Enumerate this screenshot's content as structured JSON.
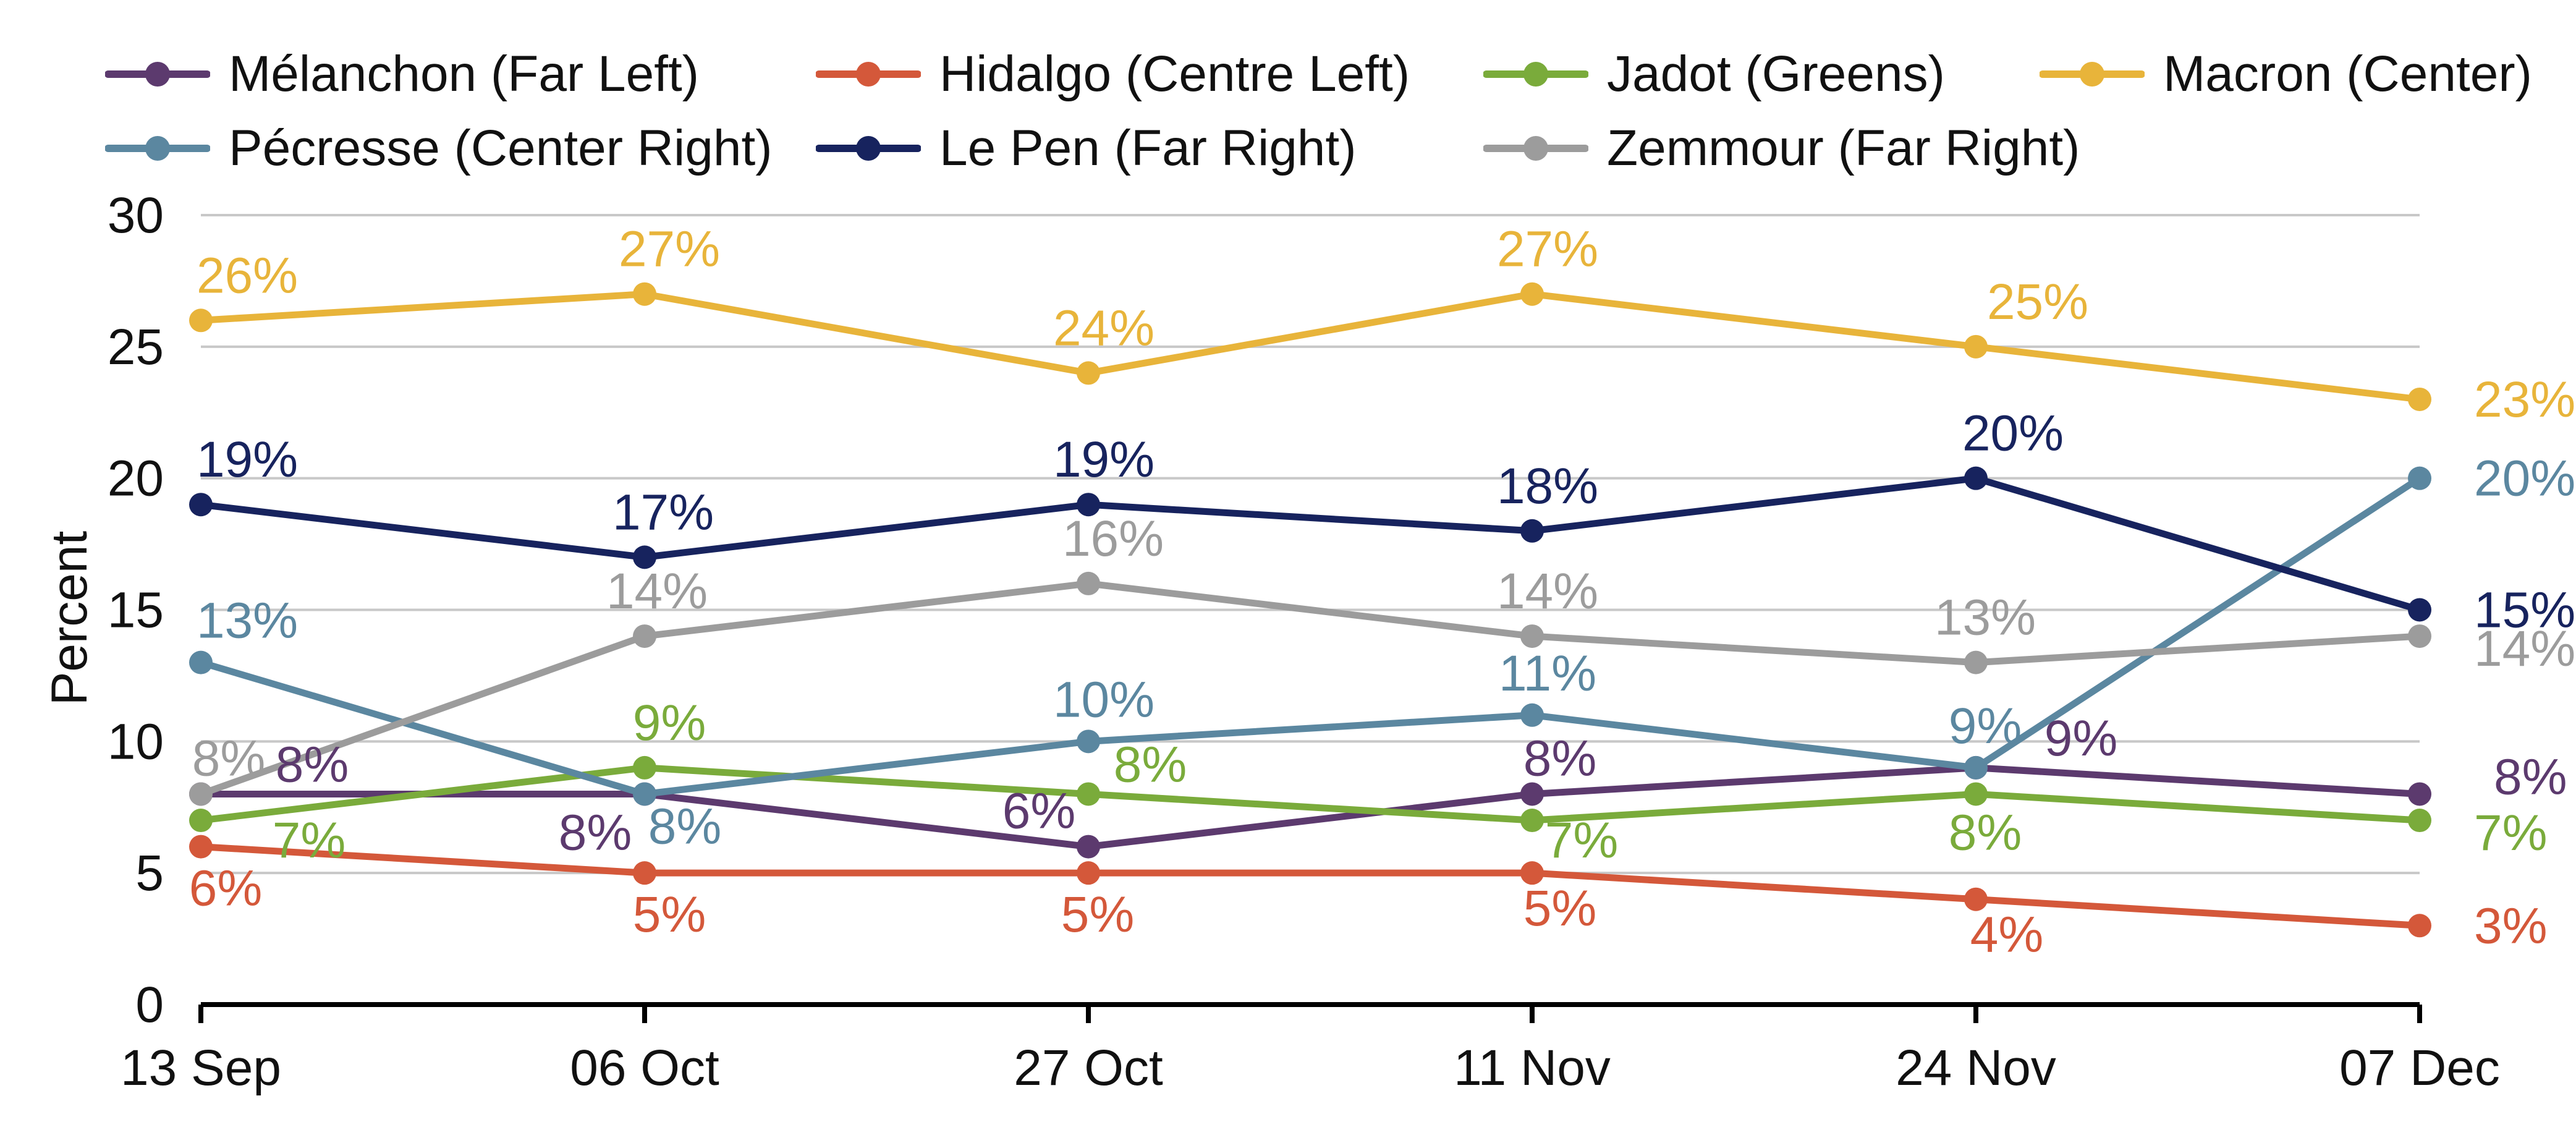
{
  "chart_data": {
    "type": "line",
    "title": "",
    "xlabel": "",
    "ylabel": "Percent",
    "ylim": [
      0,
      30
    ],
    "yticks": [
      "0",
      "5",
      "10",
      "15",
      "20",
      "25",
      "30"
    ],
    "grid": true,
    "legend_position": "top",
    "categories": [
      "13 Sep",
      "06 Oct",
      "27 Oct",
      "11 Nov",
      "24 Nov",
      "07 Dec"
    ],
    "series": [
      {
        "name": "Mélanchon (Far Left)",
        "color": "#5c3a6e",
        "values": [
          8,
          8,
          6,
          8,
          9,
          8
        ],
        "labels": [
          "8%",
          "8%",
          "6%",
          "8%",
          "9%",
          "8%"
        ]
      },
      {
        "name": "Hidalgo (Centre Left)",
        "color": "#d4583a",
        "values": [
          6,
          5,
          5,
          5,
          4,
          3
        ],
        "labels": [
          "6%",
          "5%",
          "5%",
          "5%",
          "4%",
          "3%"
        ]
      },
      {
        "name": "Jadot (Greens)",
        "color": "#7aab3b",
        "values": [
          7,
          9,
          8,
          7,
          8,
          7
        ],
        "labels": [
          "7%",
          "9%",
          "8%",
          "7%",
          "8%",
          "7%"
        ]
      },
      {
        "name": "Macron (Center)",
        "color": "#e8b43a",
        "values": [
          26,
          27,
          24,
          27,
          25,
          23
        ],
        "labels": [
          "26%",
          "27%",
          "24%",
          "27%",
          "25%",
          "23%"
        ]
      },
      {
        "name": "Pécresse (Center Right)",
        "color": "#5b87a0",
        "values": [
          13,
          8,
          10,
          11,
          9,
          20
        ],
        "labels": [
          "13%",
          "8%",
          "10%",
          "11%",
          "9%",
          "20%"
        ]
      },
      {
        "name": "Le Pen (Far Right)",
        "color": "#17235e",
        "values": [
          19,
          17,
          19,
          18,
          20,
          15
        ],
        "labels": [
          "19%",
          "17%",
          "19%",
          "18%",
          "20%",
          "15%"
        ]
      },
      {
        "name": "Zemmour (Far Right)",
        "color": "#9c9c9c",
        "values": [
          8,
          14,
          16,
          14,
          13,
          14
        ],
        "labels": [
          "8%",
          "14%",
          "16%",
          "14%",
          "13%",
          "14%"
        ]
      }
    ]
  }
}
